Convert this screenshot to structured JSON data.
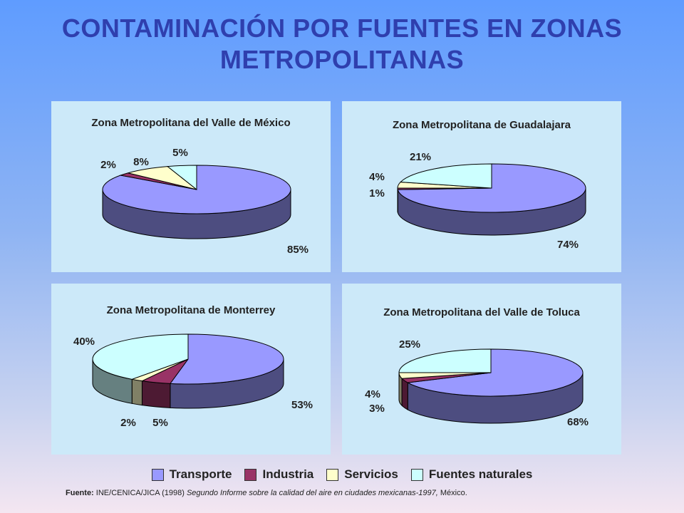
{
  "title_line1": "CONTAMINACIÓN POR FUENTES EN ZONAS",
  "title_line2": "METROPOLITANAS",
  "colors": {
    "Transporte": "#9999ff",
    "Industria": "#993366",
    "Servicios": "#ffffcc",
    "Fuentes naturales": "#ccffff"
  },
  "legend": [
    "Transporte",
    "Industria",
    "Servicios",
    "Fuentes naturales"
  ],
  "source": {
    "label": "Fuente:",
    "org": "INE/CENICA/JICA (1998)",
    "pub": "Segundo Informe sobre la calidad del aire en ciudades mexicanas-1997,",
    "place": "México."
  },
  "chart_data": [
    {
      "type": "pie",
      "title": "Zona Metropolitana del Valle de México",
      "categories": [
        "Transporte",
        "Industria",
        "Servicios",
        "Fuentes naturales"
      ],
      "values": [
        85,
        2,
        8,
        5
      ],
      "labels": [
        "85%",
        "2%",
        "8%",
        "5%"
      ]
    },
    {
      "type": "pie",
      "title": "Zona Metropolitana de Guadalajara",
      "categories": [
        "Transporte",
        "Industria",
        "Servicios",
        "Fuentes naturales"
      ],
      "values": [
        74,
        1,
        4,
        21
      ],
      "labels": [
        "74%",
        "1%",
        "4%",
        "21%"
      ]
    },
    {
      "type": "pie",
      "title": "Zona Metropolitana de Monterrey",
      "categories": [
        "Transporte",
        "Industria",
        "Servicios",
        "Fuentes naturales"
      ],
      "values": [
        53,
        5,
        2,
        40
      ],
      "labels": [
        "53%",
        "5%",
        "2%",
        "40%"
      ]
    },
    {
      "type": "pie",
      "title": "Zona Metropolitana del Valle de Toluca",
      "categories": [
        "Transporte",
        "Industria",
        "Servicios",
        "Fuentes naturales"
      ],
      "values": [
        68,
        3,
        4,
        25
      ],
      "labels": [
        "68%",
        "3%",
        "4%",
        "25%"
      ]
    }
  ]
}
